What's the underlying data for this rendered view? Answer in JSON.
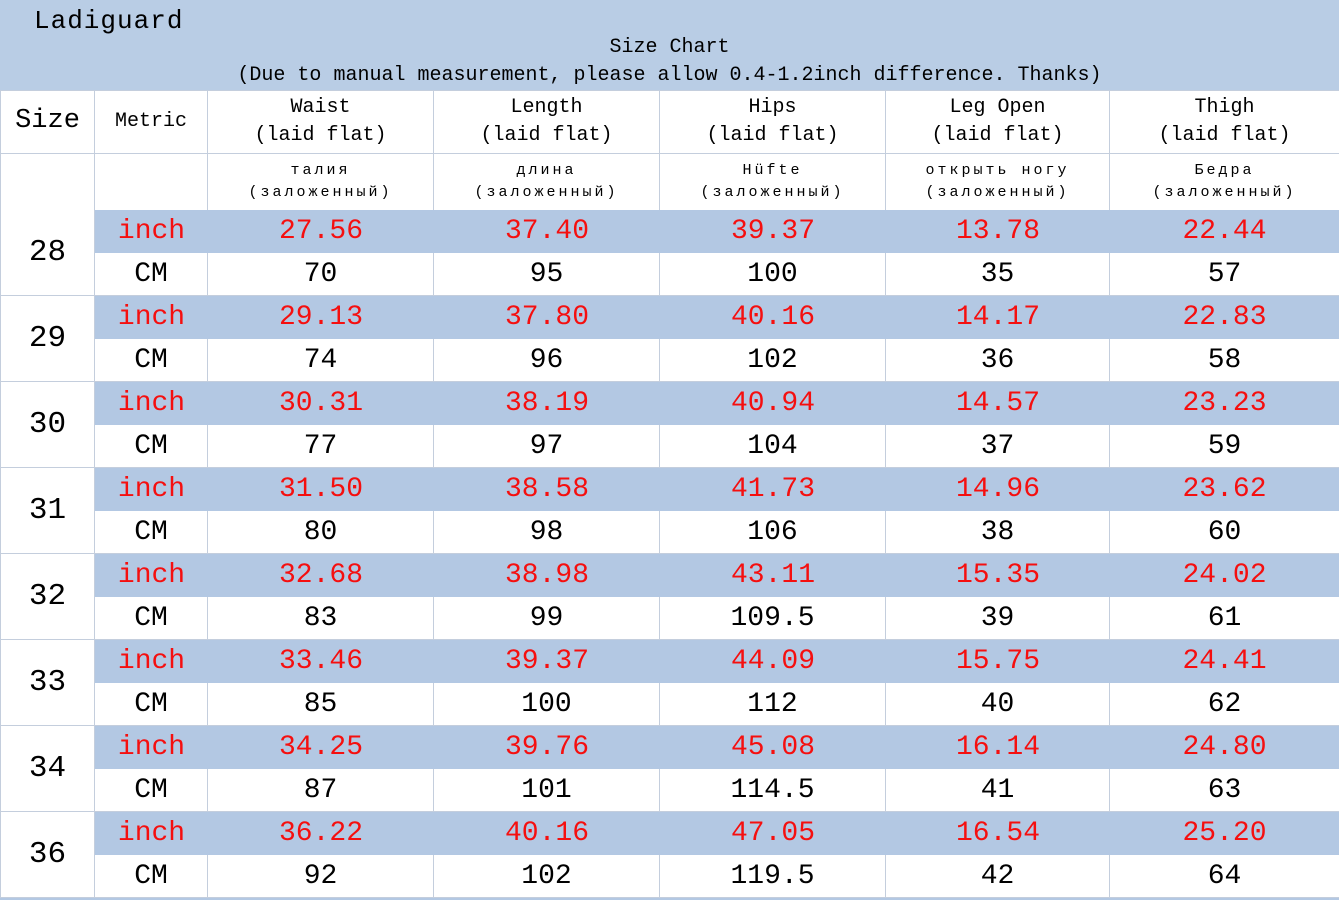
{
  "brand": "Ladiguard",
  "title": "Size Chart",
  "subtitle": "(Due to manual measurement, please allow 0.4-1.2inch difference. Thanks)",
  "colors": {
    "band_blue": "#b9cde5",
    "row_blue": "#b3c8e3",
    "value_red": "#f50f0f",
    "grid_line": "#c4cedd"
  },
  "header": {
    "size": "Size",
    "metric": "Metric",
    "measures": [
      {
        "en": "Waist",
        "sub": "(laid flat)",
        "tr": "талия",
        "tr2": "(заложенный)"
      },
      {
        "en": "Length",
        "sub": "(laid flat)",
        "tr": "длина",
        "tr2": "(заложенный)"
      },
      {
        "en": "Hips",
        "sub": "(laid flat)",
        "tr": "Hüfte",
        "tr2": "(заложенный)"
      },
      {
        "en": "Leg Open",
        "sub": "(laid flat)",
        "tr": "открыть ногу",
        "tr2": "(заложенный)"
      },
      {
        "en": "Thigh",
        "sub": "(laid flat)",
        "tr": "Бедра",
        "tr2": "(заложенный)"
      }
    ]
  },
  "unit_labels": {
    "inch": "inch",
    "cm": "CM"
  },
  "rows": [
    {
      "size": "28",
      "inch": [
        "27.56",
        "37.40",
        "39.37",
        "13.78",
        "22.44"
      ],
      "cm": [
        "70",
        "95",
        "100",
        "35",
        "57"
      ]
    },
    {
      "size": "29",
      "inch": [
        "29.13",
        "37.80",
        "40.16",
        "14.17",
        "22.83"
      ],
      "cm": [
        "74",
        "96",
        "102",
        "36",
        "58"
      ]
    },
    {
      "size": "30",
      "inch": [
        "30.31",
        "38.19",
        "40.94",
        "14.57",
        "23.23"
      ],
      "cm": [
        "77",
        "97",
        "104",
        "37",
        "59"
      ]
    },
    {
      "size": "31",
      "inch": [
        "31.50",
        "38.58",
        "41.73",
        "14.96",
        "23.62"
      ],
      "cm": [
        "80",
        "98",
        "106",
        "38",
        "60"
      ]
    },
    {
      "size": "32",
      "inch": [
        "32.68",
        "38.98",
        "43.11",
        "15.35",
        "24.02"
      ],
      "cm": [
        "83",
        "99",
        "109.5",
        "39",
        "61"
      ]
    },
    {
      "size": "33",
      "inch": [
        "33.46",
        "39.37",
        "44.09",
        "15.75",
        "24.41"
      ],
      "cm": [
        "85",
        "100",
        "112",
        "40",
        "62"
      ]
    },
    {
      "size": "34",
      "inch": [
        "34.25",
        "39.76",
        "45.08",
        "16.14",
        "24.80"
      ],
      "cm": [
        "87",
        "101",
        "114.5",
        "41",
        "63"
      ]
    },
    {
      "size": "36",
      "inch": [
        "36.22",
        "40.16",
        "47.05",
        "16.54",
        "25.20"
      ],
      "cm": [
        "92",
        "102",
        "119.5",
        "42",
        "64"
      ]
    }
  ],
  "chart_data": {
    "type": "table",
    "title": "Size Chart",
    "note": "(Due to manual measurement, please allow 0.4-1.2inch difference. Thanks)",
    "columns": [
      "Size",
      "Metric",
      "Waist (laid flat)",
      "Length (laid flat)",
      "Hips (laid flat)",
      "Leg Open (laid flat)",
      "Thigh (laid flat)"
    ],
    "rows": [
      [
        "28",
        "inch",
        27.56,
        37.4,
        39.37,
        13.78,
        22.44
      ],
      [
        "28",
        "CM",
        70,
        95,
        100,
        35,
        57
      ],
      [
        "29",
        "inch",
        29.13,
        37.8,
        40.16,
        14.17,
        22.83
      ],
      [
        "29",
        "CM",
        74,
        96,
        102,
        36,
        58
      ],
      [
        "30",
        "inch",
        30.31,
        38.19,
        40.94,
        14.57,
        23.23
      ],
      [
        "30",
        "CM",
        77,
        97,
        104,
        37,
        59
      ],
      [
        "31",
        "inch",
        31.5,
        38.58,
        41.73,
        14.96,
        23.62
      ],
      [
        "31",
        "CM",
        80,
        98,
        106,
        38,
        60
      ],
      [
        "32",
        "inch",
        32.68,
        38.98,
        43.11,
        15.35,
        24.02
      ],
      [
        "32",
        "CM",
        83,
        99,
        109.5,
        39,
        61
      ],
      [
        "33",
        "inch",
        33.46,
        39.37,
        44.09,
        15.75,
        24.41
      ],
      [
        "33",
        "CM",
        85,
        100,
        112,
        40,
        62
      ],
      [
        "34",
        "inch",
        34.25,
        39.76,
        45.08,
        16.14,
        24.8
      ],
      [
        "34",
        "CM",
        87,
        101,
        114.5,
        41,
        63
      ],
      [
        "36",
        "inch",
        36.22,
        40.16,
        47.05,
        16.54,
        25.2
      ],
      [
        "36",
        "CM",
        92,
        102,
        119.5,
        42,
        64
      ]
    ]
  }
}
